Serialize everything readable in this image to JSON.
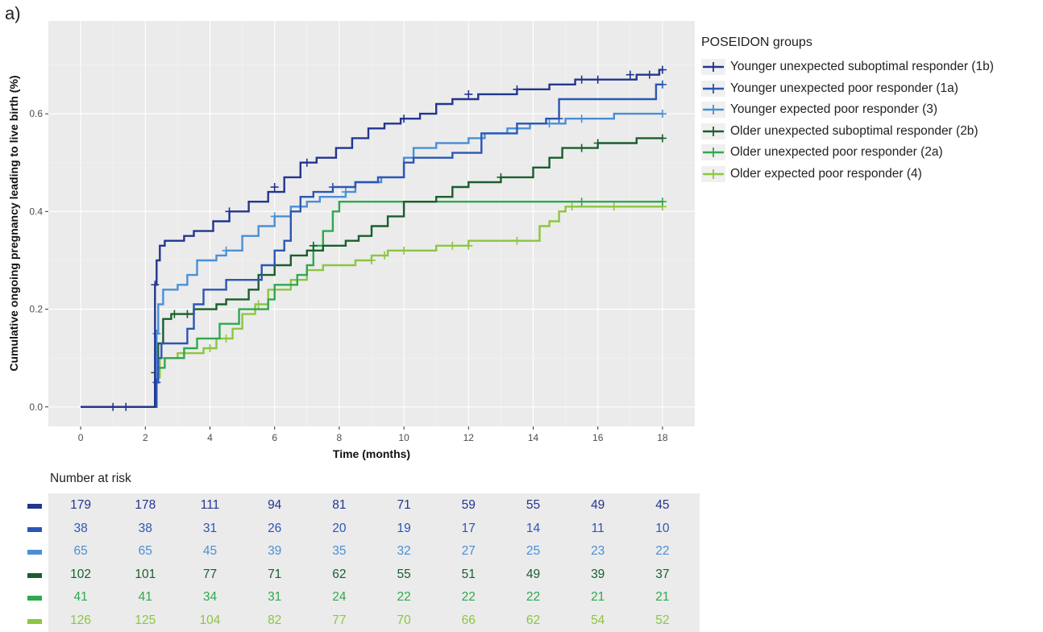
{
  "panel_label": "a)",
  "chart_data": {
    "type": "line",
    "title": "",
    "xlabel": "Time (months)",
    "ylabel": "Cumulative ongoing pregnancy leading to live birth (%)",
    "xlim": [
      -1,
      19
    ],
    "ylim": [
      -0.04,
      0.79
    ],
    "x_ticks": [
      0,
      2,
      4,
      6,
      8,
      10,
      12,
      14,
      16,
      18
    ],
    "x_tick_labels": [
      "0",
      "2",
      "4",
      "6",
      "8",
      "10",
      "12",
      "14",
      "16",
      "18"
    ],
    "y_ticks": [
      0.0,
      0.2,
      0.4,
      0.6
    ],
    "y_tick_labels": [
      "0.0",
      "0.2",
      "0.4",
      "0.6"
    ],
    "grid": true,
    "legend_position": "right",
    "legend_title": "POSEIDON groups",
    "series": [
      {
        "name": "Younger unexpected suboptimal responder (1b)",
        "color": "#22368f",
        "points": [
          [
            0,
            0
          ],
          [
            2.25,
            0
          ],
          [
            2.3,
            0.25
          ],
          [
            2.35,
            0.3
          ],
          [
            2.45,
            0.33
          ],
          [
            2.6,
            0.34
          ],
          [
            3.2,
            0.35
          ],
          [
            3.5,
            0.36
          ],
          [
            4.1,
            0.38
          ],
          [
            4.6,
            0.4
          ],
          [
            5.2,
            0.42
          ],
          [
            5.8,
            0.44
          ],
          [
            6.3,
            0.47
          ],
          [
            6.8,
            0.5
          ],
          [
            7.3,
            0.51
          ],
          [
            7.9,
            0.53
          ],
          [
            8.4,
            0.55
          ],
          [
            8.9,
            0.57
          ],
          [
            9.4,
            0.58
          ],
          [
            9.9,
            0.59
          ],
          [
            10.5,
            0.6
          ],
          [
            11.0,
            0.62
          ],
          [
            11.5,
            0.63
          ],
          [
            12.3,
            0.64
          ],
          [
            13.5,
            0.65
          ],
          [
            14.5,
            0.66
          ],
          [
            15.3,
            0.67
          ],
          [
            17.2,
            0.68
          ],
          [
            17.9,
            0.69
          ],
          [
            18,
            0.69
          ]
        ],
        "censor": [
          [
            1.0,
            0
          ],
          [
            1.4,
            0
          ],
          [
            2.3,
            0.25
          ],
          [
            4.6,
            0.4
          ],
          [
            6.0,
            0.45
          ],
          [
            7.0,
            0.5
          ],
          [
            10.0,
            0.59
          ],
          [
            12.0,
            0.64
          ],
          [
            13.5,
            0.65
          ],
          [
            15.5,
            0.67
          ],
          [
            16.0,
            0.67
          ],
          [
            17.0,
            0.68
          ],
          [
            17.6,
            0.68
          ],
          [
            18,
            0.69
          ]
        ]
      },
      {
        "name": "Younger unexpected poor responder (1a)",
        "color": "#2b56b5",
        "points": [
          [
            0,
            0
          ],
          [
            2.3,
            0
          ],
          [
            2.35,
            0.05
          ],
          [
            2.4,
            0.1
          ],
          [
            2.5,
            0.13
          ],
          [
            3.3,
            0.16
          ],
          [
            3.5,
            0.21
          ],
          [
            3.8,
            0.24
          ],
          [
            4.5,
            0.26
          ],
          [
            5.6,
            0.29
          ],
          [
            6.0,
            0.32
          ],
          [
            6.3,
            0.34
          ],
          [
            6.5,
            0.4
          ],
          [
            6.8,
            0.43
          ],
          [
            7.2,
            0.44
          ],
          [
            7.8,
            0.45
          ],
          [
            8.5,
            0.46
          ],
          [
            9.2,
            0.47
          ],
          [
            10.0,
            0.5
          ],
          [
            10.3,
            0.51
          ],
          [
            11.5,
            0.52
          ],
          [
            12.4,
            0.56
          ],
          [
            13.5,
            0.58
          ],
          [
            14.4,
            0.59
          ],
          [
            14.8,
            0.63
          ],
          [
            17.8,
            0.66
          ],
          [
            18,
            0.66
          ]
        ],
        "censor": [
          [
            2.35,
            0.05
          ],
          [
            7.8,
            0.45
          ],
          [
            14.8,
            0.59
          ],
          [
            18,
            0.66
          ]
        ]
      },
      {
        "name": "Younger expected poor responder (3)",
        "color": "#4a8fd6",
        "points": [
          [
            0,
            0
          ],
          [
            2.3,
            0
          ],
          [
            2.35,
            0.15
          ],
          [
            2.4,
            0.21
          ],
          [
            2.55,
            0.24
          ],
          [
            3.0,
            0.25
          ],
          [
            3.3,
            0.27
          ],
          [
            3.6,
            0.3
          ],
          [
            4.2,
            0.31
          ],
          [
            4.5,
            0.32
          ],
          [
            5.0,
            0.35
          ],
          [
            5.5,
            0.37
          ],
          [
            6.0,
            0.39
          ],
          [
            6.5,
            0.41
          ],
          [
            7.0,
            0.42
          ],
          [
            7.4,
            0.43
          ],
          [
            8.2,
            0.44
          ],
          [
            8.5,
            0.46
          ],
          [
            9.3,
            0.47
          ],
          [
            10.0,
            0.51
          ],
          [
            10.3,
            0.53
          ],
          [
            11.0,
            0.54
          ],
          [
            12.0,
            0.55
          ],
          [
            12.5,
            0.56
          ],
          [
            13.2,
            0.57
          ],
          [
            13.9,
            0.58
          ],
          [
            15.0,
            0.59
          ],
          [
            16.5,
            0.6
          ],
          [
            18,
            0.6
          ]
        ],
        "censor": [
          [
            2.35,
            0.15
          ],
          [
            4.5,
            0.32
          ],
          [
            6.0,
            0.39
          ],
          [
            8.2,
            0.44
          ],
          [
            14.5,
            0.58
          ],
          [
            15.5,
            0.59
          ],
          [
            18,
            0.6
          ]
        ]
      },
      {
        "name": "Older unexpected suboptimal responder (2b)",
        "color": "#1a5e2d",
        "points": [
          [
            0,
            0
          ],
          [
            2.25,
            0
          ],
          [
            2.3,
            0.07
          ],
          [
            2.4,
            0.13
          ],
          [
            2.55,
            0.18
          ],
          [
            2.8,
            0.19
          ],
          [
            3.5,
            0.2
          ],
          [
            4.2,
            0.21
          ],
          [
            4.5,
            0.22
          ],
          [
            5.2,
            0.24
          ],
          [
            5.5,
            0.27
          ],
          [
            6.0,
            0.29
          ],
          [
            6.5,
            0.31
          ],
          [
            7.0,
            0.32
          ],
          [
            7.5,
            0.33
          ],
          [
            8.2,
            0.34
          ],
          [
            8.6,
            0.35
          ],
          [
            9.0,
            0.37
          ],
          [
            9.5,
            0.39
          ],
          [
            10.0,
            0.42
          ],
          [
            11.0,
            0.43
          ],
          [
            11.5,
            0.45
          ],
          [
            12.0,
            0.46
          ],
          [
            13.0,
            0.47
          ],
          [
            14.0,
            0.49
          ],
          [
            14.5,
            0.51
          ],
          [
            14.9,
            0.53
          ],
          [
            16.0,
            0.54
          ],
          [
            17.2,
            0.55
          ],
          [
            18,
            0.55
          ]
        ],
        "censor": [
          [
            2.3,
            0.07
          ],
          [
            2.9,
            0.19
          ],
          [
            3.3,
            0.19
          ],
          [
            7.2,
            0.33
          ],
          [
            13.0,
            0.47
          ],
          [
            15.5,
            0.53
          ],
          [
            16.0,
            0.54
          ],
          [
            18,
            0.55
          ]
        ]
      },
      {
        "name": "Older unexpected poor responder (2a)",
        "color": "#2fa84f",
        "points": [
          [
            0,
            0
          ],
          [
            2.3,
            0
          ],
          [
            2.35,
            0.08
          ],
          [
            2.6,
            0.1
          ],
          [
            3.2,
            0.12
          ],
          [
            3.6,
            0.14
          ],
          [
            4.3,
            0.17
          ],
          [
            4.9,
            0.2
          ],
          [
            5.8,
            0.22
          ],
          [
            6.0,
            0.25
          ],
          [
            6.7,
            0.27
          ],
          [
            7.0,
            0.29
          ],
          [
            7.2,
            0.33
          ],
          [
            7.5,
            0.36
          ],
          [
            7.8,
            0.4
          ],
          [
            8.0,
            0.42
          ],
          [
            18,
            0.42
          ]
        ],
        "censor": [
          [
            15.5,
            0.42
          ],
          [
            18,
            0.42
          ]
        ]
      },
      {
        "name": "Older expected poor responder (4)",
        "color": "#8cc63f",
        "points": [
          [
            0,
            0
          ],
          [
            2.3,
            0
          ],
          [
            2.35,
            0.06
          ],
          [
            2.45,
            0.1
          ],
          [
            3.0,
            0.11
          ],
          [
            3.8,
            0.12
          ],
          [
            4.2,
            0.14
          ],
          [
            4.7,
            0.16
          ],
          [
            5.0,
            0.19
          ],
          [
            5.4,
            0.21
          ],
          [
            5.8,
            0.24
          ],
          [
            6.5,
            0.26
          ],
          [
            7.0,
            0.28
          ],
          [
            7.5,
            0.29
          ],
          [
            8.5,
            0.3
          ],
          [
            9.0,
            0.31
          ],
          [
            9.5,
            0.32
          ],
          [
            11.0,
            0.33
          ],
          [
            12.0,
            0.34
          ],
          [
            14.2,
            0.37
          ],
          [
            14.5,
            0.38
          ],
          [
            14.8,
            0.4
          ],
          [
            15.0,
            0.41
          ],
          [
            18,
            0.41
          ]
        ],
        "censor": [
          [
            4.0,
            0.12
          ],
          [
            4.5,
            0.14
          ],
          [
            5.5,
            0.21
          ],
          [
            9.0,
            0.3
          ],
          [
            9.4,
            0.31
          ],
          [
            10.0,
            0.32
          ],
          [
            11.5,
            0.33
          ],
          [
            12.0,
            0.33
          ],
          [
            13.5,
            0.34
          ],
          [
            15.2,
            0.41
          ],
          [
            16.5,
            0.41
          ],
          [
            18,
            0.41
          ]
        ]
      }
    ]
  },
  "risk_table": {
    "title": "Number at risk",
    "times": [
      0,
      2,
      4,
      6,
      8,
      10,
      12,
      14,
      16,
      18
    ],
    "rows": [
      {
        "color": "#22368f",
        "values": [
          "179",
          "178",
          "111",
          "94",
          "81",
          "71",
          "59",
          "55",
          "49",
          "45"
        ]
      },
      {
        "color": "#2b56b5",
        "values": [
          "38",
          "38",
          "31",
          "26",
          "20",
          "19",
          "17",
          "14",
          "11",
          "10"
        ]
      },
      {
        "color": "#4a8fd6",
        "values": [
          "65",
          "65",
          "45",
          "39",
          "35",
          "32",
          "27",
          "25",
          "23",
          "22"
        ]
      },
      {
        "color": "#1a5e2d",
        "values": [
          "102",
          "101",
          "77",
          "71",
          "62",
          "55",
          "51",
          "49",
          "39",
          "37"
        ]
      },
      {
        "color": "#2fa84f",
        "values": [
          "41",
          "41",
          "34",
          "31",
          "24",
          "22",
          "22",
          "22",
          "21",
          "21"
        ]
      },
      {
        "color": "#8cc63f",
        "values": [
          "126",
          "125",
          "104",
          "82",
          "77",
          "70",
          "66",
          "62",
          "54",
          "52"
        ]
      }
    ]
  }
}
